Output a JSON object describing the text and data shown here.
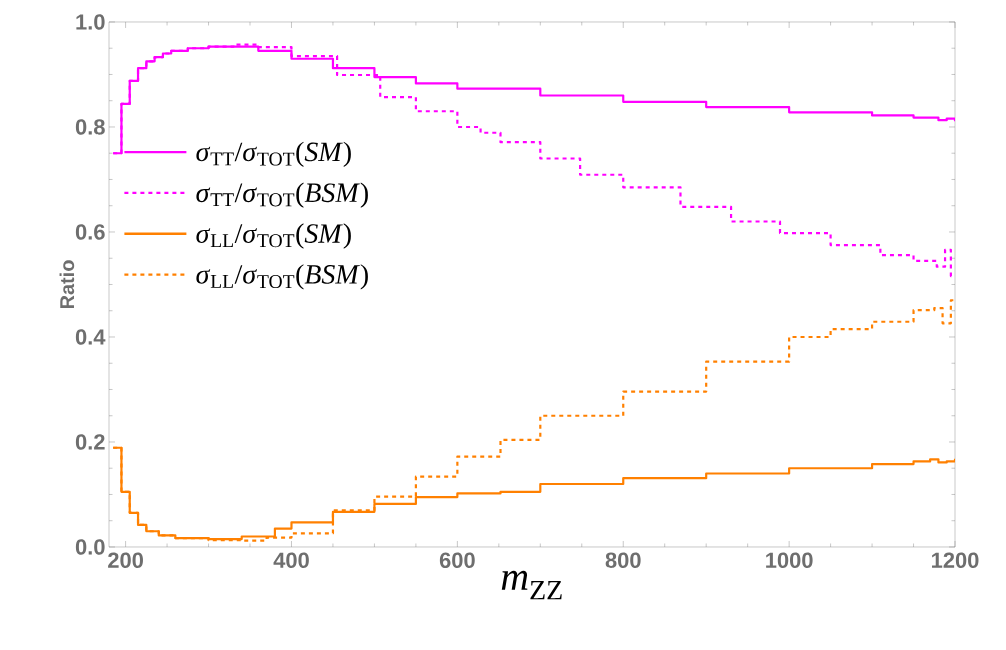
{
  "chart_data": {
    "type": "step",
    "xlabel": "*m*$_{ZZ}$",
    "ylabel": "Ratio",
    "xlim": [
      180,
      1200
    ],
    "ylim": [
      0,
      1.0
    ],
    "xticks": [
      200,
      400,
      600,
      800,
      1000,
      1200
    ],
    "yticks": [
      {
        "value": 0,
        "label": "0.0"
      },
      {
        "value": 0.2,
        "label": "0.2"
      },
      {
        "value": 0.4,
        "label": "0.4"
      },
      {
        "value": 0.6,
        "label": "0.6"
      },
      {
        "value": 0.8,
        "label": "0.8"
      },
      {
        "value": 1.0,
        "label": "1.0"
      }
    ],
    "grid": false,
    "legend": "left",
    "marker": "none",
    "series": [
      {
        "name": "*σ*$_{TT}$/*σ*$_{TOT}$(*SM*)",
        "color": "#ff00ff",
        "line_style": "solid",
        "x": [
          185,
          195,
          205,
          215,
          225,
          235,
          245,
          255,
          275,
          300,
          330,
          360,
          400,
          450,
          500,
          550,
          600,
          700,
          800,
          900,
          1000,
          1100,
          1150,
          1180,
          1190,
          1200
        ],
        "values": [
          0.75,
          0.844,
          0.888,
          0.912,
          0.925,
          0.933,
          0.94,
          0.945,
          0.95,
          0.953,
          0.953,
          0.945,
          0.93,
          0.912,
          0.895,
          0.883,
          0.873,
          0.86,
          0.848,
          0.838,
          0.828,
          0.822,
          0.818,
          0.813,
          0.816,
          0.811
        ]
      },
      {
        "name": "*σ*$_{TT}$/*σ*$_{TOT}$(*BSM*)",
        "color": "#ff00ff",
        "line_style": "dashed",
        "x": [
          185,
          195,
          205,
          215,
          225,
          235,
          245,
          255,
          275,
          300,
          330,
          360,
          400,
          455,
          507,
          550,
          600,
          628,
          652,
          700,
          748,
          800,
          869,
          930,
          989,
          1050,
          1110,
          1150,
          1178,
          1188,
          1195,
          1200
        ],
        "values": [
          0.75,
          0.844,
          0.888,
          0.912,
          0.925,
          0.933,
          0.94,
          0.945,
          0.95,
          0.953,
          0.957,
          0.952,
          0.935,
          0.899,
          0.857,
          0.83,
          0.8,
          0.789,
          0.771,
          0.74,
          0.709,
          0.685,
          0.648,
          0.62,
          0.598,
          0.575,
          0.556,
          0.545,
          0.534,
          0.566,
          0.516,
          0.516
        ]
      },
      {
        "name": "*σ*$_{LL}$/*σ*$_{TOT}$(*SM*)",
        "color": "#ff8000",
        "line_style": "solid",
        "x": [
          185,
          195,
          205,
          215,
          225,
          240,
          260,
          300,
          340,
          380,
          400,
          450,
          500,
          550,
          600,
          652,
          700,
          800,
          900,
          1000,
          1100,
          1150,
          1170,
          1180,
          1190,
          1200
        ],
        "values": [
          0.189,
          0.105,
          0.065,
          0.042,
          0.03,
          0.022,
          0.017,
          0.015,
          0.02,
          0.035,
          0.047,
          0.067,
          0.082,
          0.095,
          0.102,
          0.105,
          0.12,
          0.131,
          0.14,
          0.15,
          0.158,
          0.163,
          0.167,
          0.161,
          0.163,
          0.168
        ]
      },
      {
        "name": "*σ*$_{LL}$/*σ*$_{TOT}$(*BSM*)",
        "color": "#ff8000",
        "line_style": "dashed",
        "x": [
          185,
          195,
          205,
          215,
          225,
          240,
          260,
          300,
          340,
          370,
          400,
          450,
          500,
          550,
          600,
          652,
          700,
          800,
          900,
          1000,
          1050,
          1100,
          1150,
          1175,
          1185,
          1195,
          1200
        ],
        "values": [
          0.189,
          0.105,
          0.065,
          0.042,
          0.03,
          0.022,
          0.017,
          0.013,
          0.012,
          0.018,
          0.026,
          0.07,
          0.096,
          0.134,
          0.172,
          0.204,
          0.25,
          0.296,
          0.353,
          0.4,
          0.415,
          0.429,
          0.451,
          0.455,
          0.426,
          0.47,
          0.47
        ]
      }
    ]
  }
}
